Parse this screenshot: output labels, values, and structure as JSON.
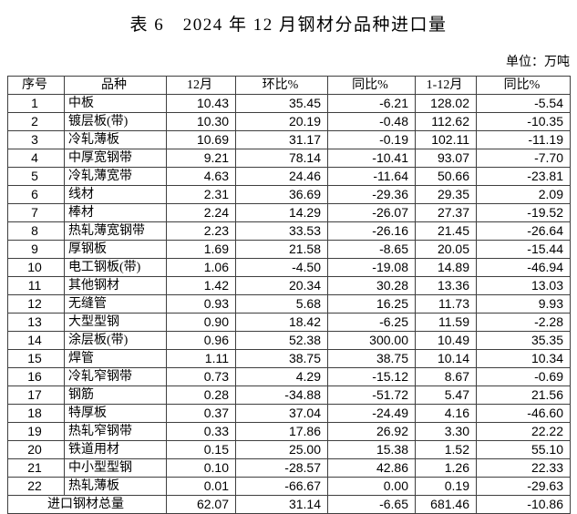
{
  "title": "表 6　2024 年 12 月钢材分品种进口量",
  "unit_label": "单位：万吨",
  "table": {
    "headers": [
      "序号",
      "品种",
      "12月",
      "环比%",
      "同比%",
      "1-12月",
      "同比%"
    ],
    "rows": [
      [
        "1",
        "中板",
        "10.43",
        "35.45",
        "-6.21",
        "128.02",
        "-5.54"
      ],
      [
        "2",
        "镀层板(带)",
        "10.30",
        "20.19",
        "-0.48",
        "112.62",
        "-10.35"
      ],
      [
        "3",
        "冷轧薄板",
        "10.69",
        "31.17",
        "-0.19",
        "102.11",
        "-11.19"
      ],
      [
        "4",
        "中厚宽钢带",
        "9.21",
        "78.14",
        "-10.41",
        "93.07",
        "-7.70"
      ],
      [
        "5",
        "冷轧薄宽带",
        "4.63",
        "24.46",
        "-11.64",
        "50.66",
        "-23.81"
      ],
      [
        "6",
        "线材",
        "2.31",
        "36.69",
        "-29.36",
        "29.35",
        "2.09"
      ],
      [
        "7",
        "棒材",
        "2.24",
        "14.29",
        "-26.07",
        "27.37",
        "-19.52"
      ],
      [
        "8",
        "热轧薄宽钢带",
        "2.23",
        "33.53",
        "-26.16",
        "21.45",
        "-26.64"
      ],
      [
        "9",
        "厚钢板",
        "1.69",
        "21.58",
        "-8.65",
        "20.05",
        "-15.44"
      ],
      [
        "10",
        "电工钢板(带)",
        "1.06",
        "-4.50",
        "-19.08",
        "14.89",
        "-46.94"
      ],
      [
        "11",
        "其他钢材",
        "1.42",
        "20.34",
        "30.28",
        "13.36",
        "13.03"
      ],
      [
        "12",
        "无缝管",
        "0.93",
        "5.68",
        "16.25",
        "11.73",
        "9.93"
      ],
      [
        "13",
        "大型型钢",
        "0.90",
        "18.42",
        "-6.25",
        "11.59",
        "-2.28"
      ],
      [
        "14",
        "涂层板(带)",
        "0.96",
        "52.38",
        "300.00",
        "10.49",
        "35.35"
      ],
      [
        "15",
        "焊管",
        "1.11",
        "38.75",
        "38.75",
        "10.14",
        "10.34"
      ],
      [
        "16",
        "冷轧窄钢带",
        "0.73",
        "4.29",
        "-15.12",
        "8.67",
        "-0.69"
      ],
      [
        "17",
        "钢筋",
        "0.28",
        "-34.88",
        "-51.72",
        "5.47",
        "21.56"
      ],
      [
        "18",
        "特厚板",
        "0.37",
        "37.04",
        "-24.49",
        "4.16",
        "-46.60"
      ],
      [
        "19",
        "热轧窄钢带",
        "0.33",
        "17.86",
        "26.92",
        "3.30",
        "22.22"
      ],
      [
        "20",
        "铁道用材",
        "0.15",
        "25.00",
        "15.38",
        "1.52",
        "55.10"
      ],
      [
        "21",
        "中小型型钢",
        "0.10",
        "-28.57",
        "42.86",
        "1.26",
        "22.33"
      ],
      [
        "22",
        "热轧薄板",
        "0.01",
        "-66.67",
        "0.00",
        "0.19",
        "-29.63"
      ]
    ],
    "total": [
      "进口钢材总量",
      "62.07",
      "31.14",
      "-6.65",
      "681.46",
      "-10.86"
    ]
  },
  "chart_data": {
    "type": "table",
    "title": "表 6　2024 年 12 月钢材分品种进口量",
    "unit": "万吨",
    "columns": [
      "序号",
      "品种",
      "12月",
      "环比%",
      "同比%",
      "1-12月",
      "同比%"
    ],
    "categories": [
      "中板",
      "镀层板(带)",
      "冷轧薄板",
      "中厚宽钢带",
      "冷轧薄宽带",
      "线材",
      "棒材",
      "热轧薄宽钢带",
      "厚钢板",
      "电工钢板(带)",
      "其他钢材",
      "无缝管",
      "大型型钢",
      "涂层板(带)",
      "焊管",
      "冷轧窄钢带",
      "钢筋",
      "特厚板",
      "热轧窄钢带",
      "铁道用材",
      "中小型型钢",
      "热轧薄板"
    ],
    "series": [
      {
        "name": "12月",
        "values": [
          10.43,
          10.3,
          10.69,
          9.21,
          4.63,
          2.31,
          2.24,
          2.23,
          1.69,
          1.06,
          1.42,
          0.93,
          0.9,
          0.96,
          1.11,
          0.73,
          0.28,
          0.37,
          0.33,
          0.15,
          0.1,
          0.01
        ]
      },
      {
        "name": "环比%",
        "values": [
          35.45,
          20.19,
          31.17,
          78.14,
          24.46,
          36.69,
          14.29,
          33.53,
          21.58,
          -4.5,
          20.34,
          5.68,
          18.42,
          52.38,
          38.75,
          4.29,
          -34.88,
          37.04,
          17.86,
          25.0,
          -28.57,
          -66.67
        ]
      },
      {
        "name": "同比%",
        "values": [
          -6.21,
          -0.48,
          -0.19,
          -10.41,
          -11.64,
          -29.36,
          -26.07,
          -26.16,
          -8.65,
          -19.08,
          30.28,
          16.25,
          -6.25,
          300.0,
          38.75,
          -15.12,
          -51.72,
          -24.49,
          26.92,
          15.38,
          42.86,
          0.0
        ]
      },
      {
        "name": "1-12月",
        "values": [
          128.02,
          112.62,
          102.11,
          93.07,
          50.66,
          29.35,
          27.37,
          21.45,
          20.05,
          14.89,
          13.36,
          11.73,
          11.59,
          10.49,
          10.14,
          8.67,
          5.47,
          4.16,
          3.3,
          1.52,
          1.26,
          0.19
        ]
      },
      {
        "name": "1-12月同比%",
        "values": [
          -5.54,
          -10.35,
          -11.19,
          -7.7,
          -23.81,
          2.09,
          -19.52,
          -26.64,
          -15.44,
          -46.94,
          13.03,
          9.93,
          -2.28,
          35.35,
          10.34,
          -0.69,
          21.56,
          -46.6,
          22.22,
          55.1,
          22.33,
          -29.63
        ]
      }
    ],
    "total": {
      "label": "进口钢材总量",
      "values": [
        62.07,
        31.14,
        -6.65,
        681.46,
        -10.86
      ]
    }
  }
}
